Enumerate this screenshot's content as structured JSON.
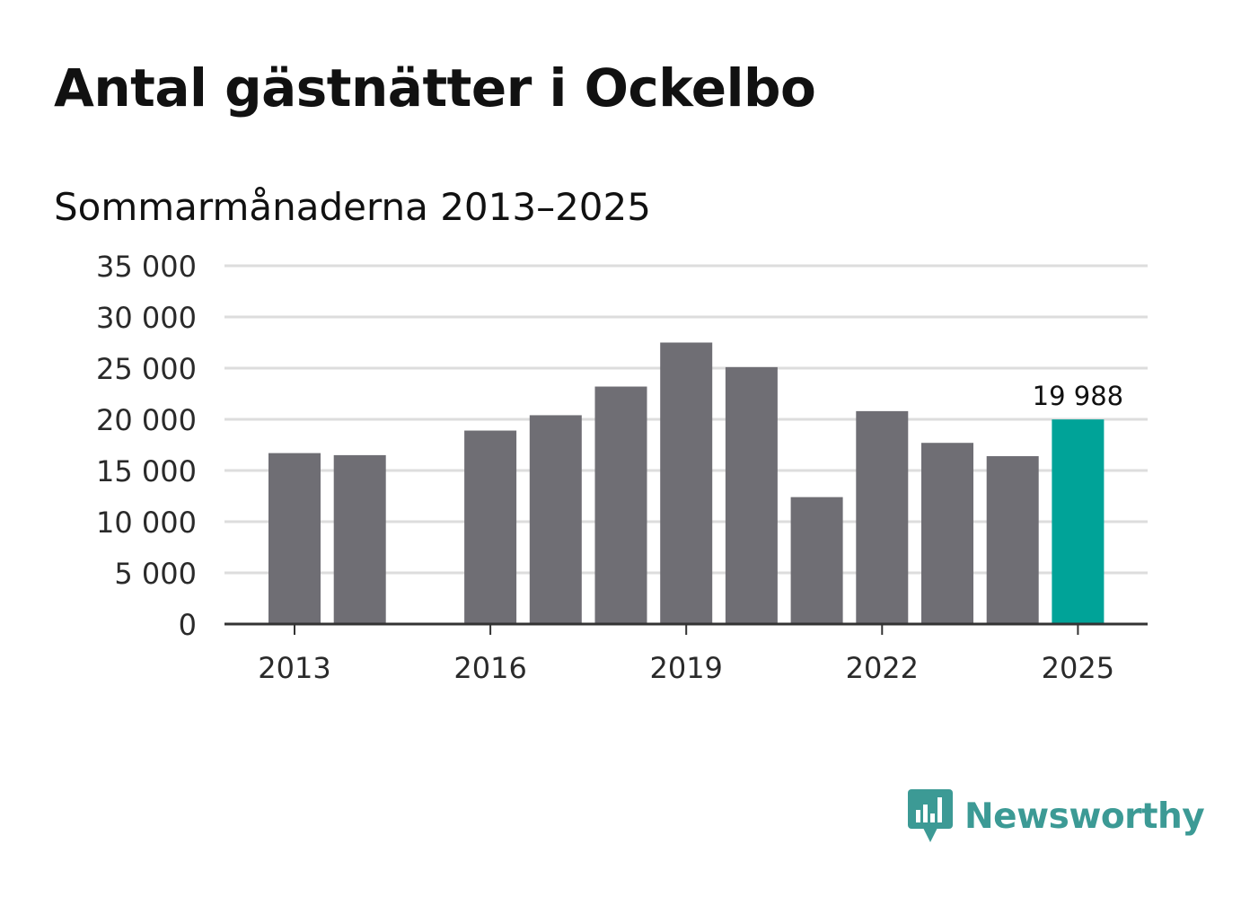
{
  "title": "Antal gästnätter i Ockelbo",
  "subtitle": "Sommarmånaderna 2013–2025",
  "brand": {
    "name": "Newsworthy",
    "icon": "newsworthy-logo-icon",
    "color": "#3c9a95"
  },
  "colors": {
    "bar": "#6f6e74",
    "highlight": "#00a398",
    "grid": "#dddddd",
    "axis": "#333333"
  },
  "chart_data": {
    "type": "bar",
    "categories": [
      "2013",
      "2014",
      "2015",
      "2016",
      "2017",
      "2018",
      "2019",
      "2020",
      "2021",
      "2022",
      "2023",
      "2024",
      "2025"
    ],
    "values": [
      16700,
      16500,
      null,
      18900,
      20400,
      23200,
      27500,
      25100,
      12400,
      20800,
      17700,
      16400,
      19988
    ],
    "highlight_index": 12,
    "highlight_label": "19 988",
    "x_tick_labels": [
      "2013",
      "2016",
      "2019",
      "2022",
      "2025"
    ],
    "y_ticks": [
      0,
      5000,
      10000,
      15000,
      20000,
      25000,
      30000,
      35000
    ],
    "y_tick_labels": [
      "0",
      "5 000",
      "10 000",
      "15 000",
      "20 000",
      "25 000",
      "30 000",
      "35 000"
    ],
    "ylim": [
      0,
      35000
    ],
    "grid": true
  }
}
